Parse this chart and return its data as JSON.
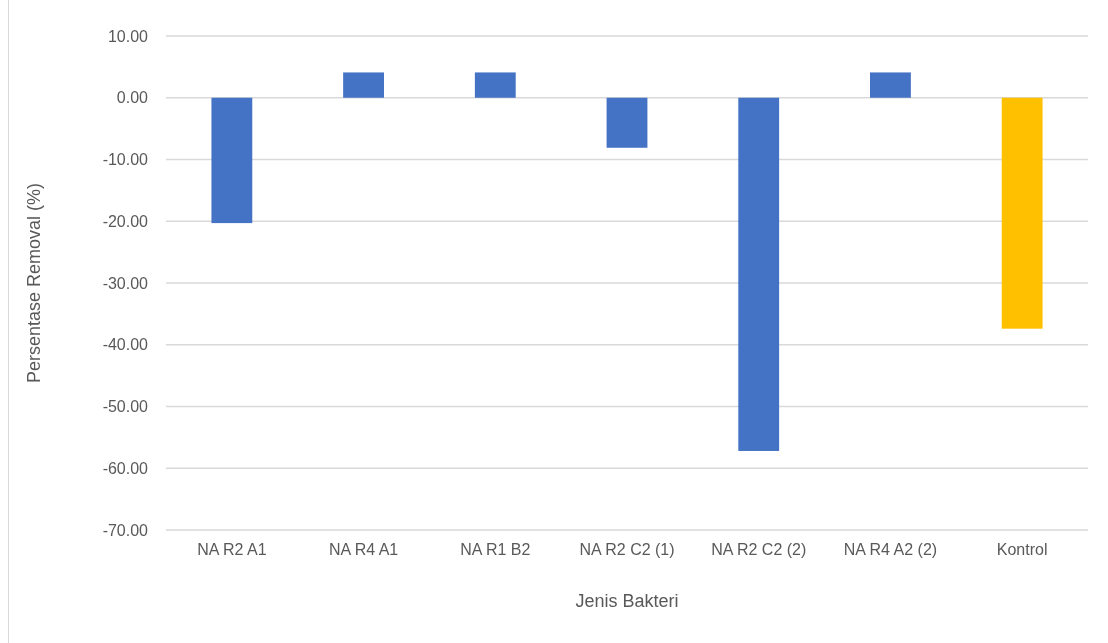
{
  "chart_data": {
    "type": "bar",
    "xlabel": "Jenis Bakteri",
    "ylabel": "Persentase Removal (%)",
    "categories": [
      "NA R2 A1",
      "NA R4 A1",
      "NA R1 B2",
      "NA R2 C2 (1)",
      "NA R2 C2 (2)",
      "NA R4 A2 (2)",
      "Kontrol"
    ],
    "values": [
      -20.3,
      4.1,
      4.1,
      -8.1,
      -57.2,
      4.1,
      -37.4
    ],
    "colors": [
      "#4472c4",
      "#4472c4",
      "#4472c4",
      "#4472c4",
      "#4472c4",
      "#4472c4",
      "#ffc000"
    ],
    "ylim": [
      -70,
      10
    ],
    "yticks": [
      {
        "value": -70,
        "label": "-70.00"
      },
      {
        "value": -60,
        "label": "-60.00"
      },
      {
        "value": -50,
        "label": "-50.00"
      },
      {
        "value": -40,
        "label": "-40.00"
      },
      {
        "value": -30,
        "label": "-30.00"
      },
      {
        "value": -20,
        "label": "-20.00"
      },
      {
        "value": -10,
        "label": "-10.00"
      },
      {
        "value": 0,
        "label": "0.00"
      },
      {
        "value": 10,
        "label": "10.00"
      }
    ],
    "grid": "y"
  }
}
